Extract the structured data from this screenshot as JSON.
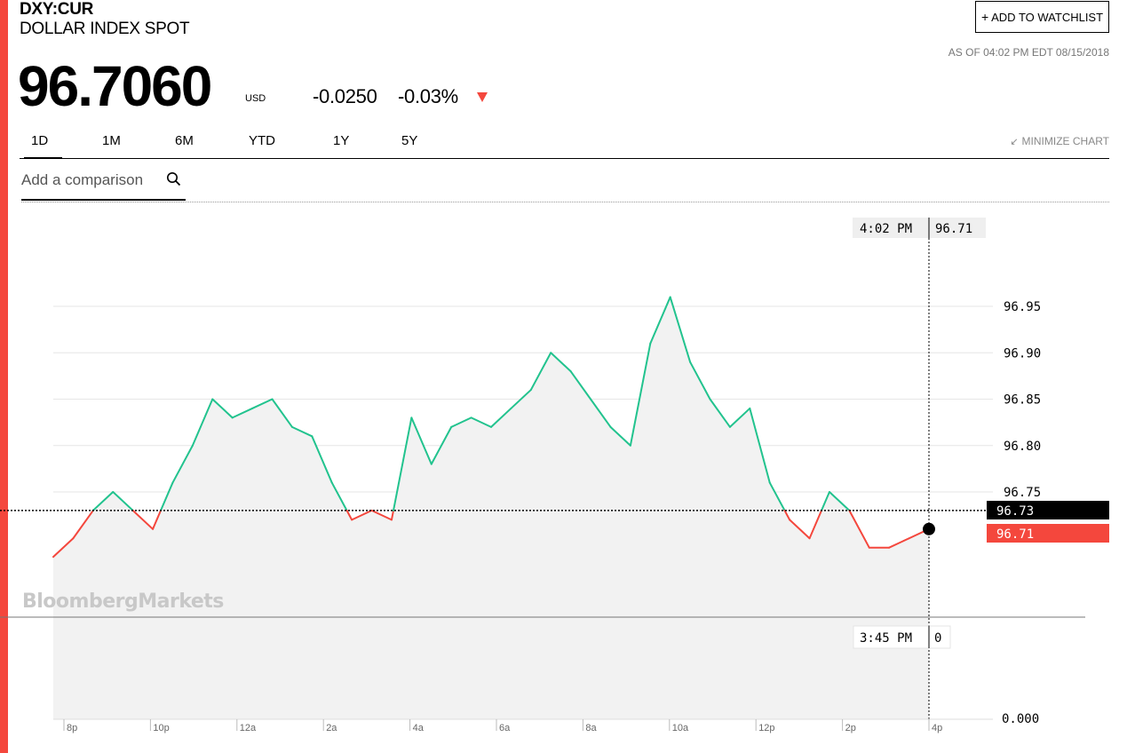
{
  "header": {
    "ticker": "DXY:CUR",
    "name": "DOLLAR INDEX SPOT",
    "watchlist_label": "ADD TO WATCHLIST",
    "as_of": "AS OF 04:02 PM EDT 08/15/2018",
    "price": "96.7060",
    "currency": "USD",
    "change": "-0.0250",
    "change_pct": "-0.03%",
    "direction": "down"
  },
  "tabs": [
    "1D",
    "1M",
    "6M",
    "YTD",
    "1Y",
    "5Y"
  ],
  "active_tab": "1D",
  "minimize_label": "MINIMIZE CHART",
  "comparison": {
    "placeholder": "Add a comparison"
  },
  "watermark": "BloombergMarkets",
  "colors": {
    "up": "#22c38e",
    "down": "#f4473d",
    "fill": "#f2f2f2",
    "accent": "#f4473d"
  },
  "chart_data": {
    "type": "line",
    "title": "",
    "xlabel": "",
    "ylabel": "",
    "ylim": [
      96.6,
      97.0
    ],
    "y_ticks": [
      "96.95",
      "96.90",
      "96.85",
      "96.80",
      "96.75"
    ],
    "x_ticks": [
      "8p",
      "10p",
      "12a",
      "2a",
      "4a",
      "6a",
      "8a",
      "10a",
      "12p",
      "2p",
      "4p"
    ],
    "previous_close": 96.73,
    "previous_close_label": "96.73",
    "last_value_label": "96.71",
    "crosshair": {
      "time": "4:02 PM",
      "value": "96.71"
    },
    "volume_panel": {
      "time": "3:45 PM",
      "value": "0",
      "axis_label": "0.000"
    },
    "series": [
      {
        "x": [
          "6:00 PM",
          "6:30 PM",
          "7:00 PM",
          "7:30 PM",
          "8:00 PM",
          "8:30 PM",
          "9:00 PM",
          "9:30 PM",
          "10:00 PM",
          "10:30 PM",
          "11:00 PM",
          "11:30 PM",
          "12:00 AM",
          "12:30 AM",
          "1:00 AM",
          "1:30 AM",
          "2:00 AM",
          "2:30 AM",
          "3:00 AM",
          "3:30 AM",
          "4:00 AM",
          "4:30 AM",
          "5:00 AM",
          "5:30 AM",
          "6:00 AM",
          "6:30 AM",
          "7:00 AM",
          "7:30 AM",
          "8:00 AM",
          "8:30 AM",
          "9:00 AM",
          "9:30 AM",
          "10:00 AM",
          "10:30 AM",
          "11:00 AM",
          "11:30 AM",
          "12:00 PM",
          "12:30 PM",
          "1:00 PM",
          "1:30 PM",
          "2:00 PM",
          "2:30 PM",
          "3:00 PM",
          "3:30 PM",
          "4:00 PM"
        ],
        "values": [
          96.68,
          96.7,
          96.73,
          96.75,
          96.73,
          96.71,
          96.76,
          96.8,
          96.85,
          96.83,
          96.84,
          96.85,
          96.82,
          96.81,
          96.76,
          96.72,
          96.73,
          96.72,
          96.83,
          96.78,
          96.82,
          96.83,
          96.82,
          96.84,
          96.86,
          96.9,
          96.88,
          96.85,
          96.82,
          96.8,
          96.91,
          96.96,
          96.89,
          96.85,
          96.82,
          96.84,
          96.76,
          96.72,
          96.7,
          96.75,
          96.73,
          96.69,
          96.69,
          96.7,
          96.71
        ]
      }
    ]
  }
}
